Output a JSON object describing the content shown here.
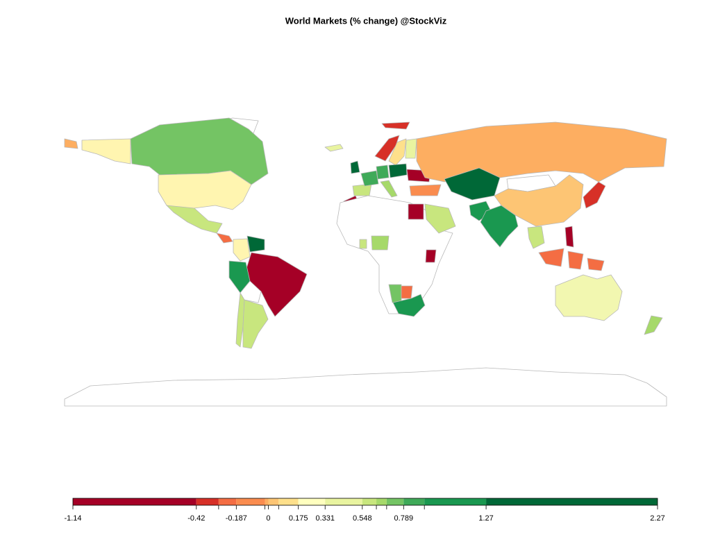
{
  "title": "World Markets (% change) @StockViz",
  "legend": {
    "bins": [
      -1.14,
      -0.42,
      -0.29,
      -0.187,
      -0.02,
      0,
      0.06,
      0.175,
      0.331,
      0.548,
      0.63,
      0.69,
      0.789,
      0.91,
      1.27,
      2.27
    ],
    "colors": [
      "#a50026",
      "#d73027",
      "#f46d43",
      "#fa8c4f",
      "#fdae61",
      "#fdc574",
      "#fee08b",
      "#ffffbf",
      "#e9f4a0",
      "#c8e67e",
      "#a6d96a",
      "#74c464",
      "#3faa59",
      "#1a9850",
      "#006837"
    ],
    "ticks": [
      -1.14,
      -0.42,
      -0.187,
      0,
      0.175,
      0.331,
      0.548,
      0.789,
      1.27,
      2.27
    ]
  }
}
